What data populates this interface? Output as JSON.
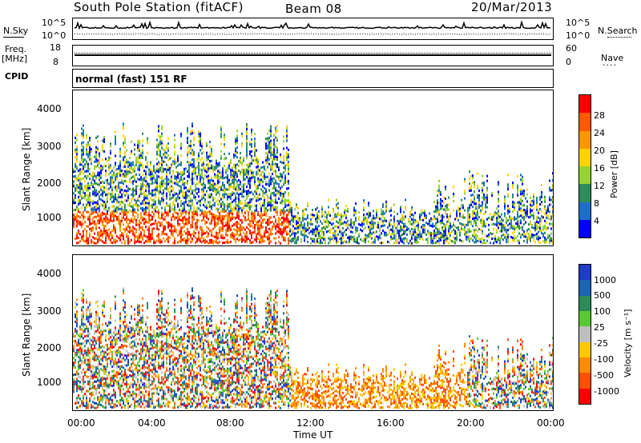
{
  "header": {
    "station": "South Pole Station (fitACF)",
    "beam": "Beam 08",
    "date": "20/Mar/2013"
  },
  "top_panels": {
    "nsky_label": "N.Sky",
    "nsky_ticks": [
      "10^5",
      "10^0"
    ],
    "nsearch_label": "N.Search",
    "nsearch_ticks": [
      "10^5",
      "10^0"
    ],
    "freq_label": "Freq.",
    "freq_unit": "[MHz]",
    "freq_ticks": [
      "18",
      "8"
    ],
    "nave_label": "Nave",
    "nave_ticks": [
      "60",
      "0"
    ],
    "cpid_label": "CPID",
    "cpid_text": "normal (fast) 151 RF"
  },
  "chart_data": [
    {
      "type": "heatmap",
      "name": "power",
      "ylabel": "Slant Range [km]",
      "xlabel": "",
      "ylim": [
        180,
        4500
      ],
      "yticks": [
        "4000",
        "3000",
        "2000",
        "1000"
      ],
      "colorbar": {
        "label": "Power [dB]",
        "ticks": [
          "28",
          "24",
          "20",
          "16",
          "12",
          "8",
          "4"
        ],
        "colors": [
          "#ff0000",
          "#ff5a00",
          "#ff9600",
          "#ffd200",
          "#96d232",
          "#2f8c5a",
          "#1e6ec8",
          "#0000ff"
        ]
      }
    },
    {
      "type": "heatmap",
      "name": "velocity",
      "ylabel": "Slant Range [km]",
      "xlabel": "Time UT",
      "ylim": [
        180,
        4500
      ],
      "yticks": [
        "4000",
        "3000",
        "2000",
        "1000"
      ],
      "xticks": [
        "00:00",
        "04:00",
        "08:00",
        "12:00",
        "16:00",
        "20:00",
        "00:00"
      ],
      "colorbar": {
        "label": "Velocity [m s⁻¹]",
        "ticks": [
          "1000",
          "500",
          "100",
          "25",
          "-25",
          "-100",
          "-500",
          "-1000"
        ],
        "colors": [
          "#1e3cc8",
          "#1e64b4",
          "#2e8b57",
          "#5ac832",
          "#bebebe",
          "#ffc800",
          "#ff8c00",
          "#ff5000",
          "#ff0000"
        ]
      }
    }
  ]
}
